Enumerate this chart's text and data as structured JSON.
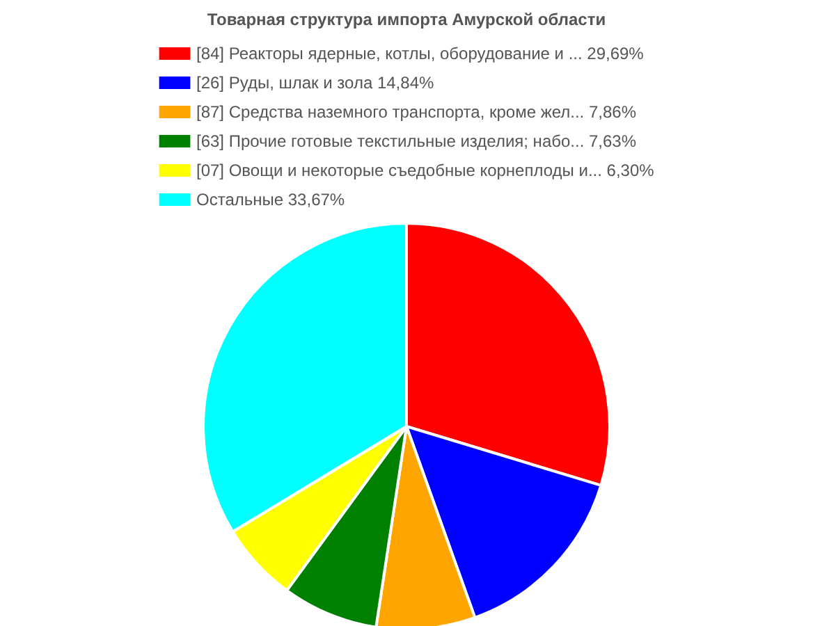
{
  "chart_data": {
    "type": "pie",
    "title": "Товарная структура импорта Амурской области",
    "categories": [
      "[84] Реакторы ядерные, котлы, оборудование и ...",
      "[26] Руды, шлак и зола",
      "[87] Средства наземного транспорта, кроме жел...",
      "[63] Прочие готовые текстильные изделия; набо...",
      "[07] Овощи и некоторые съедобные корнеплоды и...",
      "Остальные "
    ],
    "values": [
      29.69,
      14.84,
      7.86,
      7.63,
      6.3,
      33.67
    ],
    "value_labels": [
      "29,69%",
      "14,84%",
      "7,86%",
      "7,63%",
      "6,30%",
      "33,67%"
    ],
    "colors": [
      "#ff0000",
      "#0000ff",
      "#ffa500",
      "#008000",
      "#ffff00",
      "#00ffff"
    ],
    "legend": "top"
  }
}
